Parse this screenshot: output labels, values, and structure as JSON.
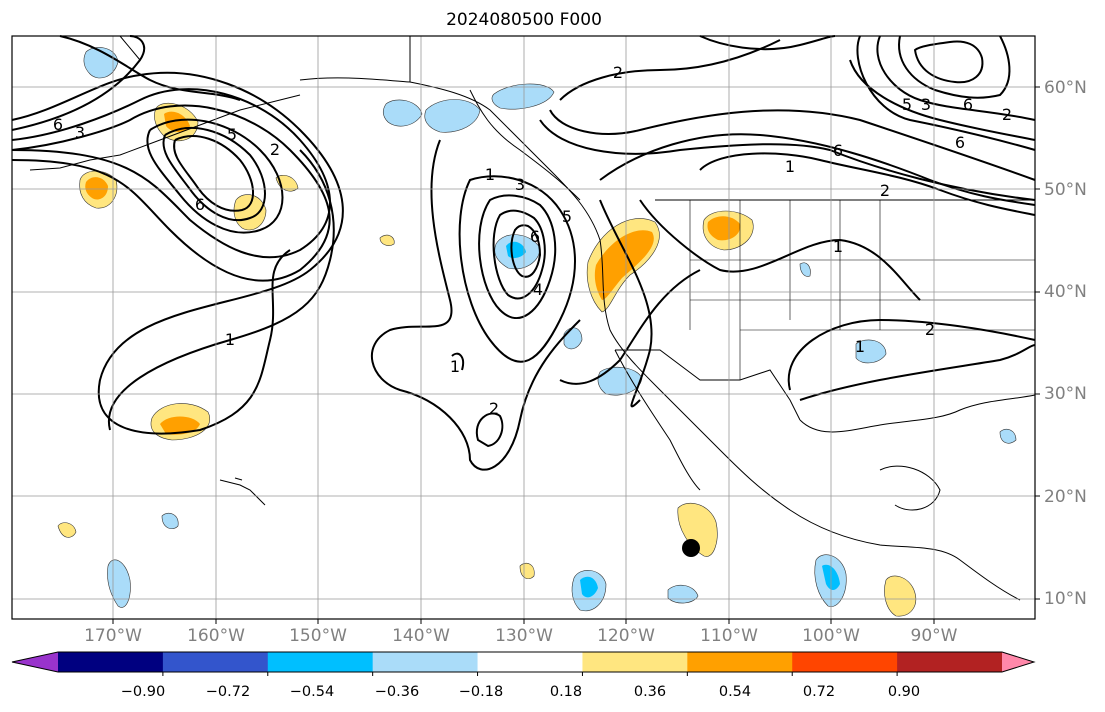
{
  "title": "2024080500 F000",
  "lon_labels": [
    "170°W",
    "160°W",
    "150°W",
    "140°W",
    "130°W",
    "120°W",
    "110°W",
    "100°W",
    "90°W"
  ],
  "lat_labels": [
    "60°N",
    "50°N",
    "40°N",
    "30°N",
    "20°N",
    "10°N"
  ],
  "colorbar": {
    "ticks": [
      "−0.90",
      "−0.72",
      "−0.54",
      "−0.36",
      "−0.18",
      "0.18",
      "0.36",
      "0.54",
      "0.72",
      "0.90"
    ],
    "colors": [
      "#9933cc",
      "#000080",
      "#3355cc",
      "#00bfff",
      "#aadcf9",
      "#ffffff",
      "#ffe680",
      "#ffa000",
      "#ff4500",
      "#b22222",
      "#ff88aa"
    ]
  },
  "contour_labels": [
    "6",
    "3",
    "5",
    "2",
    "1",
    "6",
    "2",
    "1",
    "3",
    "6",
    "5",
    "4",
    "2",
    "1",
    "6",
    "1",
    "2",
    "6",
    "5",
    "3",
    "6",
    "2",
    "1",
    "1",
    "2"
  ],
  "marker": {
    "name": "storm-center",
    "lon": -113.5,
    "lat": 15.0
  }
}
